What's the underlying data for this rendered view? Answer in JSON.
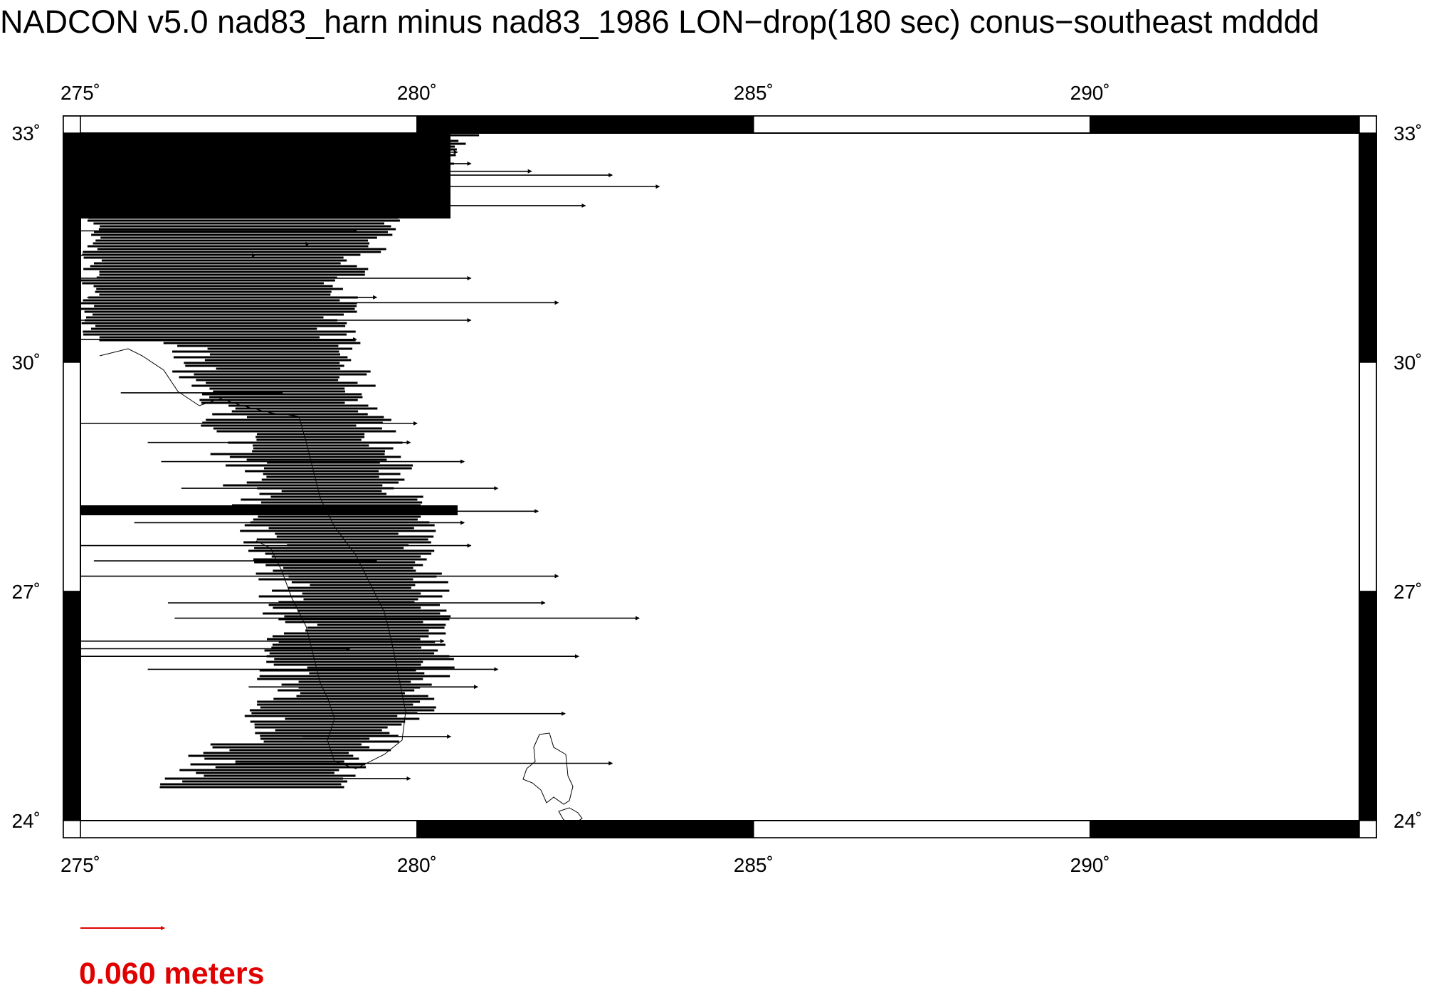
{
  "title": "NADCON v5.0 nad83_harn minus nad83_1986 LON−drop(180 sec) conus−southeast mdddd",
  "map": {
    "lon_range": [
      275,
      294
    ],
    "lat_range": [
      24,
      33
    ],
    "frame": "plain black and white checkered border",
    "lon_ticks": [
      {
        "value": 275,
        "label": "275˚"
      },
      {
        "value": 280,
        "label": "280˚"
      },
      {
        "value": 285,
        "label": "285˚"
      },
      {
        "value": 290,
        "label": "290˚"
      }
    ],
    "lat_ticks": [
      {
        "value": 33,
        "label": "33˚"
      },
      {
        "value": 30,
        "label": "30˚"
      },
      {
        "value": 27,
        "label": "27˚"
      },
      {
        "value": 24,
        "label": "24˚"
      }
    ],
    "colors": {
      "vectors": "#000000",
      "coastline": "#000000",
      "scale": "#e00000"
    }
  },
  "scale": {
    "length_m": 0.06,
    "label": "0.060 meters"
  },
  "vectors": [
    {
      "lon": 275.0,
      "lat": 32.92,
      "dlon": 3.4
    },
    {
      "lon": 275.1,
      "lat": 32.75,
      "dlon": 5.5
    },
    {
      "lon": 275.0,
      "lat": 32.6,
      "dlon": 5.8
    },
    {
      "lon": 275.1,
      "lat": 32.5,
      "dlon": 6.6
    },
    {
      "lon": 275.0,
      "lat": 32.45,
      "dlon": 7.9
    },
    {
      "lon": 275.0,
      "lat": 32.3,
      "dlon": 8.6
    },
    {
      "lon": 275.1,
      "lat": 32.05,
      "dlon": 7.4
    },
    {
      "lon": 275.0,
      "lat": 31.95,
      "dlon": 5.3
    },
    {
      "lon": 275.0,
      "lat": 31.72,
      "dlon": 4.1
    },
    {
      "lon": 275.2,
      "lat": 31.55,
      "dlon": 3.2
    },
    {
      "lon": 275.0,
      "lat": 31.4,
      "dlon": 2.6
    },
    {
      "lon": 275.0,
      "lat": 31.1,
      "dlon": 5.8
    },
    {
      "lon": 275.1,
      "lat": 30.85,
      "dlon": 4.3
    },
    {
      "lon": 275.0,
      "lat": 30.78,
      "dlon": 7.1
    },
    {
      "lon": 275.0,
      "lat": 30.55,
      "dlon": 5.8
    },
    {
      "lon": 275.0,
      "lat": 30.3,
      "dlon": 4.1
    },
    {
      "lon": 275.6,
      "lat": 29.6,
      "dlon": 2.4
    },
    {
      "lon": 275.0,
      "lat": 29.2,
      "dlon": 5.0
    },
    {
      "lon": 276.0,
      "lat": 28.95,
      "dlon": 3.9
    },
    {
      "lon": 276.2,
      "lat": 28.7,
      "dlon": 4.5
    },
    {
      "lon": 276.5,
      "lat": 28.35,
      "dlon": 4.7
    },
    {
      "lon": 275.0,
      "lat": 28.05,
      "dlon": 6.8
    },
    {
      "lon": 275.8,
      "lat": 27.9,
      "dlon": 4.9
    },
    {
      "lon": 275.0,
      "lat": 27.6,
      "dlon": 5.8
    },
    {
      "lon": 275.2,
      "lat": 27.4,
      "dlon": 4.2
    },
    {
      "lon": 275.0,
      "lat": 27.2,
      "dlon": 7.1
    },
    {
      "lon": 276.3,
      "lat": 26.85,
      "dlon": 5.6
    },
    {
      "lon": 276.4,
      "lat": 26.65,
      "dlon": 6.9
    },
    {
      "lon": 275.0,
      "lat": 26.35,
      "dlon": 5.4
    },
    {
      "lon": 275.0,
      "lat": 26.25,
      "dlon": 4.0
    },
    {
      "lon": 275.0,
      "lat": 26.15,
      "dlon": 7.4
    },
    {
      "lon": 276.0,
      "lat": 25.98,
      "dlon": 5.2
    },
    {
      "lon": 277.5,
      "lat": 25.75,
      "dlon": 3.4
    },
    {
      "lon": 278.0,
      "lat": 25.4,
      "dlon": 4.2
    },
    {
      "lon": 278.3,
      "lat": 25.1,
      "dlon": 2.2
    },
    {
      "lon": 277.3,
      "lat": 24.75,
      "dlon": 5.6
    },
    {
      "lon": 276.3,
      "lat": 24.55,
      "dlon": 3.6
    }
  ]
}
